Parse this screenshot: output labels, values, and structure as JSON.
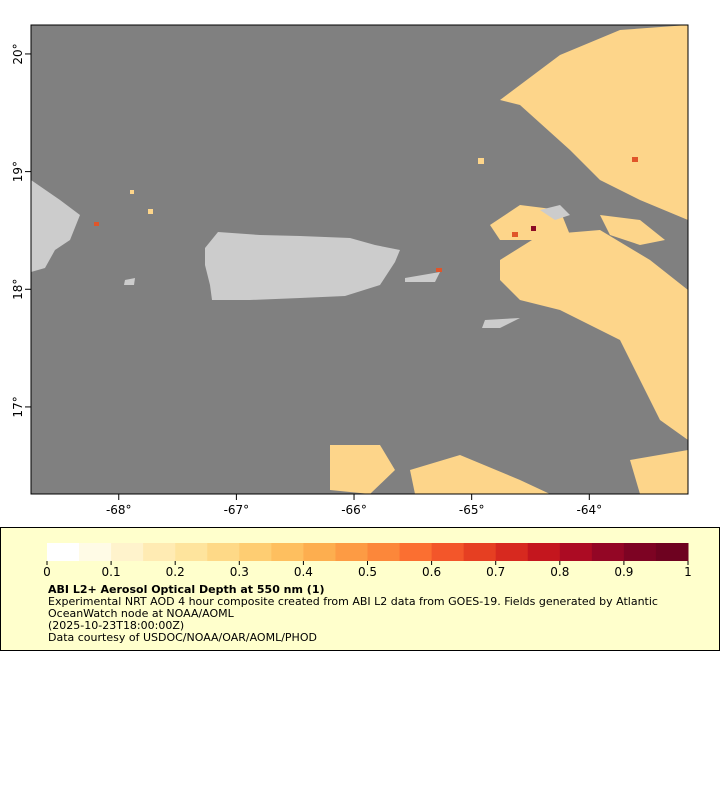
{
  "map": {
    "xlim": [
      -68.746,
      -63.161
    ],
    "ylim": [
      16.26,
      20.246
    ],
    "xticks": [
      {
        "value": -68,
        "label": "-68°"
      },
      {
        "value": -67,
        "label": "-67°"
      },
      {
        "value": -66,
        "label": "-66°"
      },
      {
        "value": -65,
        "label": "-65°"
      },
      {
        "value": -64,
        "label": "-64°"
      }
    ],
    "yticks": [
      {
        "value": 20,
        "label": "20°"
      },
      {
        "value": 19,
        "label": "19°"
      },
      {
        "value": 18,
        "label": "18°"
      },
      {
        "value": 17,
        "label": "17°"
      }
    ]
  },
  "colorbar": {
    "lim": [
      0,
      1
    ],
    "ticks": [
      0,
      0.1,
      0.2,
      0.3,
      0.4,
      0.5,
      0.6,
      0.7,
      0.8,
      0.9,
      1
    ],
    "colors": [
      "#ffffff",
      "#fffbe6",
      "#fff3cc",
      "#ffebb3",
      "#fee49d",
      "#fed987",
      "#fecd72",
      "#febf5f",
      "#fdae4f",
      "#fd9b44",
      "#fc873a",
      "#fb6f31",
      "#f3562a",
      "#e63f22",
      "#d7291f",
      "#c4161e",
      "#ac0b23",
      "#930625",
      "#7d0323",
      "#6e0220"
    ],
    "title": "ABI L2+ Aerosol Optical Depth at 550 nm (1)",
    "lines": [
      "Experimental NRT AOD 4 hour composite created from ABI L2 data from GOES-19. Fields generated by Atlantic",
      "OceanWatch node at NOAA/AOML",
      "(2025-10-23T18:00:00Z)",
      "Data courtesy of USDOC/NOAA/OAR/AOML/PHOD"
    ]
  }
}
